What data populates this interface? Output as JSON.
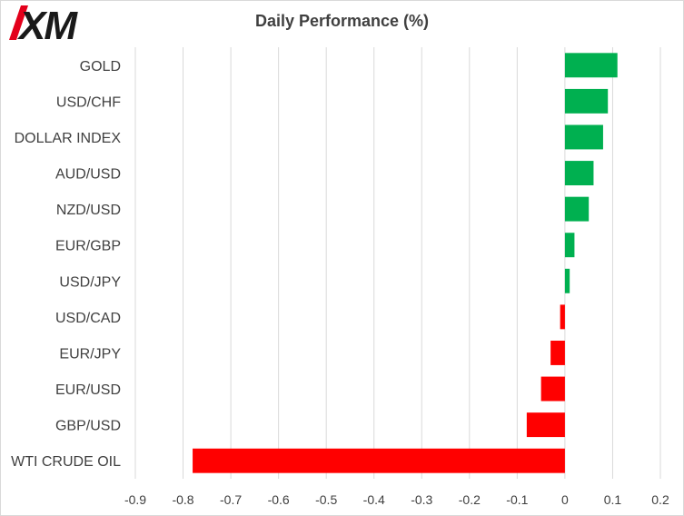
{
  "chart_data": {
    "type": "bar",
    "orientation": "horizontal",
    "title": "Daily Performance  (%)",
    "xlabel": "",
    "ylabel": "",
    "categories": [
      "GOLD",
      "USD/CHF",
      "DOLLAR INDEX",
      "AUD/USD",
      "NZD/USD",
      "EUR/GBP",
      "USD/JPY",
      "USD/CAD",
      "EUR/JPY",
      "EUR/USD",
      "GBP/USD",
      "WTI CRUDE OIL"
    ],
    "values": [
      0.11,
      0.09,
      0.08,
      0.06,
      0.05,
      0.02,
      0.01,
      -0.01,
      -0.03,
      -0.05,
      -0.08,
      -0.78
    ],
    "xlim": [
      -0.9,
      0.2
    ],
    "xticks": [
      "-0.9",
      "-0.8",
      "-0.7",
      "-0.6",
      "-0.5",
      "-0.4",
      "-0.3",
      "-0.2",
      "-0.1",
      "0",
      "0.1",
      "0.2"
    ],
    "grid": "vertical",
    "legend": "none",
    "colors": {
      "positive": "#00b050",
      "negative": "#ff0000",
      "grid": "#d9d9d9",
      "text": "#404040"
    }
  },
  "logo": {
    "text": "XM",
    "color": "#1a1a1a",
    "accent": "#e3001b"
  }
}
